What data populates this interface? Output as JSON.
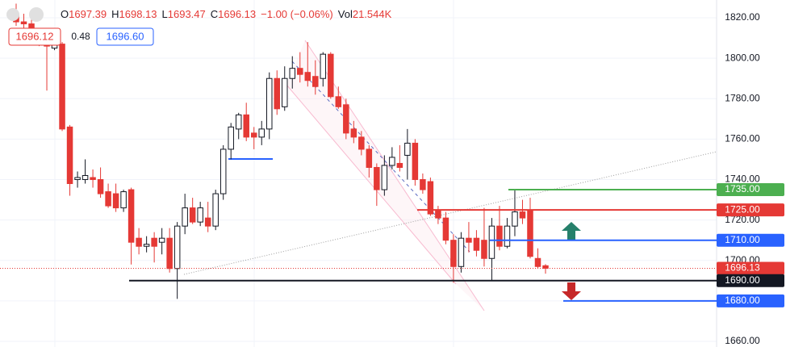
{
  "chart_data": {
    "type": "candlestick",
    "header": {
      "items": [
        [
          "O",
          "1697.39"
        ],
        [
          "H",
          "1698.13"
        ],
        [
          "L",
          "1693.47"
        ],
        [
          "C",
          "1696.13"
        ]
      ],
      "change": "−1.00 (−0.06%)",
      "volume": [
        "Vol",
        "21.544K"
      ],
      "bid": "1696.12",
      "spread": "0.48",
      "ask": "1696.60"
    },
    "ylim": [
      1657.2,
      1828.8
    ],
    "yticks": [
      {
        "value": 1660,
        "label": "1660.00"
      },
      {
        "value": 1680,
        "label": "1680.00"
      },
      {
        "value": 1700,
        "label": "1700.00"
      },
      {
        "value": 1720,
        "label": "1720.00"
      },
      {
        "value": 1740,
        "label": "1740.00"
      },
      {
        "value": 1760,
        "label": "1760.00"
      },
      {
        "value": 1780,
        "label": "1780.00"
      },
      {
        "value": 1800,
        "label": "1800.00"
      },
      {
        "value": 1820,
        "label": "1820.00"
      }
    ],
    "grid": true,
    "up_color": "#ffffff",
    "down_color": "#e53935",
    "open": [
      1822,
      1818,
      1817,
      1812,
      1808,
      1805,
      1807,
      1766,
      1740,
      1740,
      1741,
      1740,
      1734,
      1733,
      1726,
      1735,
      1711,
      1707,
      1711,
      1709,
      1711,
      1696,
      1717,
      1726,
      1719,
      1721,
      1717,
      1733,
      1755,
      1765,
      1772,
      1763,
      1761,
      1765,
      1790,
      1776,
      1790,
      1795,
      1793,
      1791,
      1790,
      1802,
      1781,
      1777,
      1765,
      1761,
      1755,
      1746,
      1735,
      1747,
      1748,
      1752,
      1758,
      1740,
      1739,
      1725,
      1721,
      1710,
      1697,
      1711,
      1711,
      1710,
      1701,
      1717,
      1707,
      1717,
      1724,
      1725,
      1701,
      1697.39
    ],
    "high": [
      1827,
      1822,
      1819,
      1815,
      1810,
      1809,
      1808,
      1767,
      1744,
      1750,
      1745,
      1746,
      1738,
      1738,
      1735,
      1736,
      1716,
      1712,
      1714,
      1716,
      1716,
      1719,
      1733,
      1731,
      1729,
      1729,
      1735,
      1757,
      1768,
      1773,
      1778,
      1766,
      1769,
      1793,
      1794,
      1796,
      1801,
      1803,
      1808,
      1799,
      1803,
      1803,
      1786,
      1780,
      1769,
      1764,
      1757,
      1748,
      1752,
      1756,
      1757,
      1765,
      1760,
      1743,
      1741,
      1727,
      1724,
      1713,
      1714,
      1719,
      1715,
      1726,
      1721,
      1727,
      1721,
      1735,
      1730,
      1731,
      1706,
      1698.13
    ],
    "low": [
      1816,
      1814,
      1812,
      1806,
      1784,
      1804,
      1764,
      1732,
      1736,
      1738,
      1736,
      1731,
      1726,
      1724,
      1724,
      1698,
      1703,
      1704,
      1699,
      1703,
      1694,
      1681,
      1713,
      1718,
      1717,
      1714,
      1715,
      1730,
      1750,
      1760,
      1759,
      1755,
      1757,
      1760,
      1772,
      1774,
      1785,
      1788,
      1786,
      1782,
      1786,
      1780,
      1775,
      1760,
      1758,
      1752,
      1741,
      1727,
      1732,
      1745,
      1744,
      1740,
      1737,
      1733,
      1722,
      1718,
      1708,
      1689,
      1694,
      1704,
      1702,
      1697,
      1690,
      1705,
      1706,
      1712,
      1718,
      1701,
      1696,
      1693.47
    ],
    "close": [
      1818,
      1817,
      1814,
      1808,
      1806,
      1807,
      1765,
      1738,
      1741,
      1742,
      1740,
      1733,
      1727,
      1726,
      1734,
      1709,
      1707,
      1708,
      1707,
      1711,
      1696,
      1717,
      1726,
      1719,
      1726,
      1717,
      1733,
      1755,
      1766,
      1772,
      1761,
      1761,
      1765,
      1790,
      1775,
      1790,
      1795,
      1792,
      1789,
      1786,
      1802,
      1781,
      1776,
      1763,
      1761,
      1755,
      1746,
      1735,
      1747,
      1751,
      1746,
      1758,
      1740,
      1735,
      1723,
      1721,
      1710,
      1697,
      1711,
      1709,
      1705,
      1701,
      1717,
      1707,
      1717,
      1724,
      1721,
      1702,
      1697,
      1696.13
    ],
    "levels": [
      {
        "value": 1735,
        "label": "1735.00",
        "color": "#4caf50"
      },
      {
        "value": 1725,
        "label": "1725.00",
        "color": "#e53935"
      },
      {
        "value": 1710,
        "label": "1710.00",
        "color": "#2962ff"
      },
      {
        "value": 1696.13,
        "label": "1696.13",
        "color": "#e53935"
      },
      {
        "value": 1690,
        "label": "1690.00",
        "color": "#131722"
      },
      {
        "value": 1680,
        "label": "1680.00",
        "color": "#2962ff"
      }
    ]
  }
}
